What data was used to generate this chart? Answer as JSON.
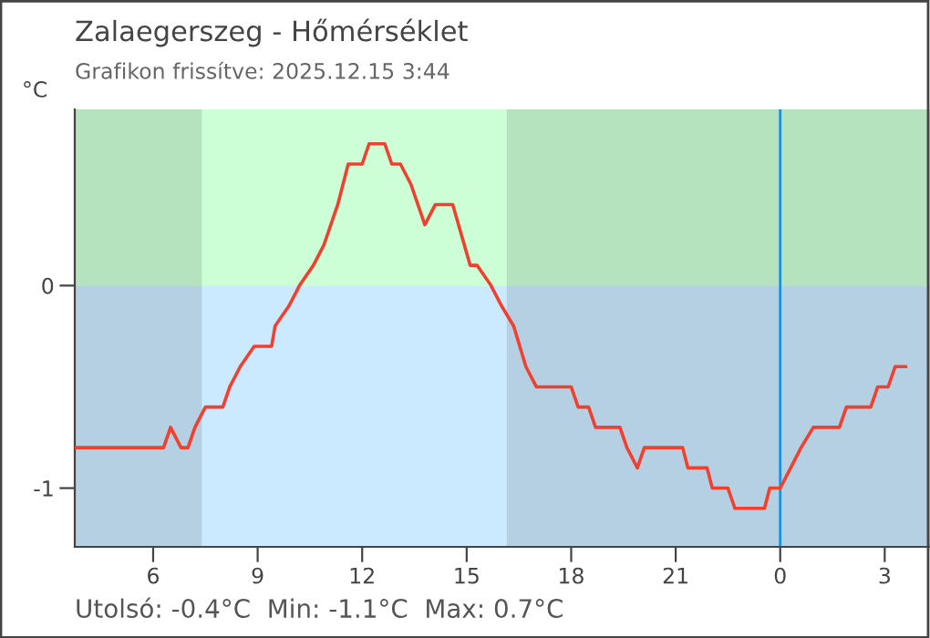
{
  "chart_data": {
    "type": "line",
    "title": "Zalaegerszeg - Hőmérséklet",
    "subtitle": "Grafikon frissítve: 2025.12.15 3:44",
    "ylabel": "°C",
    "annotations": [
      "Utolsó: -0.4°C  Min: -1.1°C  Max: 0.7°C"
    ],
    "series": [
      {
        "color": "#f04030",
        "x": [
          "2025-12-14T03:48",
          "2025-12-14T06:18",
          "2025-12-14T06:30",
          "2025-12-14T06:48",
          "2025-12-14T07:00",
          "2025-12-14T07:12",
          "2025-12-14T07:30",
          "2025-12-14T08:00",
          "2025-12-14T08:12",
          "2025-12-14T08:30",
          "2025-12-14T08:54",
          "2025-12-14T09:24",
          "2025-12-14T09:30",
          "2025-12-14T09:54",
          "2025-12-14T10:12",
          "2025-12-14T10:36",
          "2025-12-14T10:54",
          "2025-12-14T11:18",
          "2025-12-14T11:36",
          "2025-12-14T12:00",
          "2025-12-14T12:12",
          "2025-12-14T12:39",
          "2025-12-14T12:51",
          "2025-12-14T13:06",
          "2025-12-14T13:24",
          "2025-12-14T13:48",
          "2025-12-14T14:06",
          "2025-12-14T14:36",
          "2025-12-14T15:06",
          "2025-12-14T15:18",
          "2025-12-14T15:42",
          "2025-12-14T16:00",
          "2025-12-14T16:21",
          "2025-12-14T16:42",
          "2025-12-14T17:00",
          "2025-12-14T18:00",
          "2025-12-14T18:12",
          "2025-12-14T18:30",
          "2025-12-14T18:42",
          "2025-12-14T19:24",
          "2025-12-14T19:36",
          "2025-12-14T19:54",
          "2025-12-14T20:06",
          "2025-12-14T21:12",
          "2025-12-14T21:21",
          "2025-12-14T21:54",
          "2025-12-14T22:03",
          "2025-12-14T22:30",
          "2025-12-14T22:42",
          "2025-12-14T23:33",
          "2025-12-14T23:42",
          "2025-12-15T00:00",
          "2025-12-15T00:18",
          "2025-12-15T00:36",
          "2025-12-15T00:57",
          "2025-12-15T01:42",
          "2025-12-15T01:54",
          "2025-12-15T02:36",
          "2025-12-15T02:48",
          "2025-12-15T03:06",
          "2025-12-15T03:18",
          "2025-12-15T03:36"
        ],
        "values": [
          -0.8,
          -0.8,
          -0.7,
          -0.8,
          -0.8,
          -0.7,
          -0.6,
          -0.6,
          -0.5,
          -0.4,
          -0.3,
          -0.3,
          -0.2,
          -0.1,
          0.0,
          0.1,
          0.2,
          0.4,
          0.6,
          0.6,
          0.7,
          0.7,
          0.6,
          0.6,
          0.5,
          0.3,
          0.4,
          0.4,
          0.1,
          0.1,
          0.0,
          -0.1,
          -0.2,
          -0.4,
          -0.5,
          -0.5,
          -0.6,
          -0.6,
          -0.7,
          -0.7,
          -0.8,
          -0.9,
          -0.8,
          -0.8,
          -0.9,
          -0.9,
          -1.0,
          -1.0,
          -1.1,
          -1.1,
          -1.0,
          -1.0,
          -0.9,
          -0.8,
          -0.7,
          -0.7,
          -0.6,
          -0.6,
          -0.5,
          -0.5,
          -0.4,
          -0.4
        ]
      }
    ],
    "xlim": [
      "2025-12-14T03:45",
      "2025-12-15T04:18"
    ],
    "xticks": [
      {
        "value": "2025-12-14T06:00",
        "label": "6"
      },
      {
        "value": "2025-12-14T09:00",
        "label": "9"
      },
      {
        "value": "2025-12-14T12:00",
        "label": "12"
      },
      {
        "value": "2025-12-14T15:00",
        "label": "15"
      },
      {
        "value": "2025-12-14T18:00",
        "label": "18"
      },
      {
        "value": "2025-12-14T21:00",
        "label": "21"
      },
      {
        "value": "2025-12-15T00:00",
        "label": "0"
      },
      {
        "value": "2025-12-15T03:00",
        "label": "3"
      }
    ],
    "ylim": [
      -1.29,
      0.87
    ],
    "yticks": [
      -1,
      0
    ],
    "ref_lines": [
      {
        "axis": "x",
        "value": "2025-12-15T00:00",
        "color": "#1e90e0"
      }
    ],
    "bands": [
      {
        "axis": "y",
        "from": 0,
        "to": 0.87,
        "color": "#ccffd6"
      },
      {
        "axis": "y",
        "from": -1.29,
        "to": 0,
        "color": "#cceaff"
      },
      {
        "axis": "x",
        "from": "2025-12-14T03:45",
        "to": "2025-12-14T07:24"
      },
      {
        "axis": "x",
        "from": "2025-12-14T16:09",
        "to": "2025-12-15T04:18"
      }
    ],
    "grid": false
  }
}
